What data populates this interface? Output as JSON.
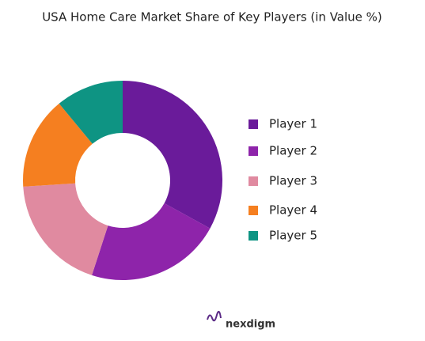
{
  "chart_data": {
    "type": "donut",
    "title": "USA Home Care Market Share of Key Players (in Value %)",
    "categories": [
      "Player 1",
      "Player 2",
      "Player 3",
      "Player 4",
      "Player 5"
    ],
    "values": [
      33,
      22,
      19,
      15,
      11
    ],
    "colors": [
      "#6a1b9a",
      "#8e24aa",
      "#e08aa0",
      "#f57f20",
      "#0e9483"
    ],
    "legend": "right"
  },
  "brand": "nexdigm"
}
